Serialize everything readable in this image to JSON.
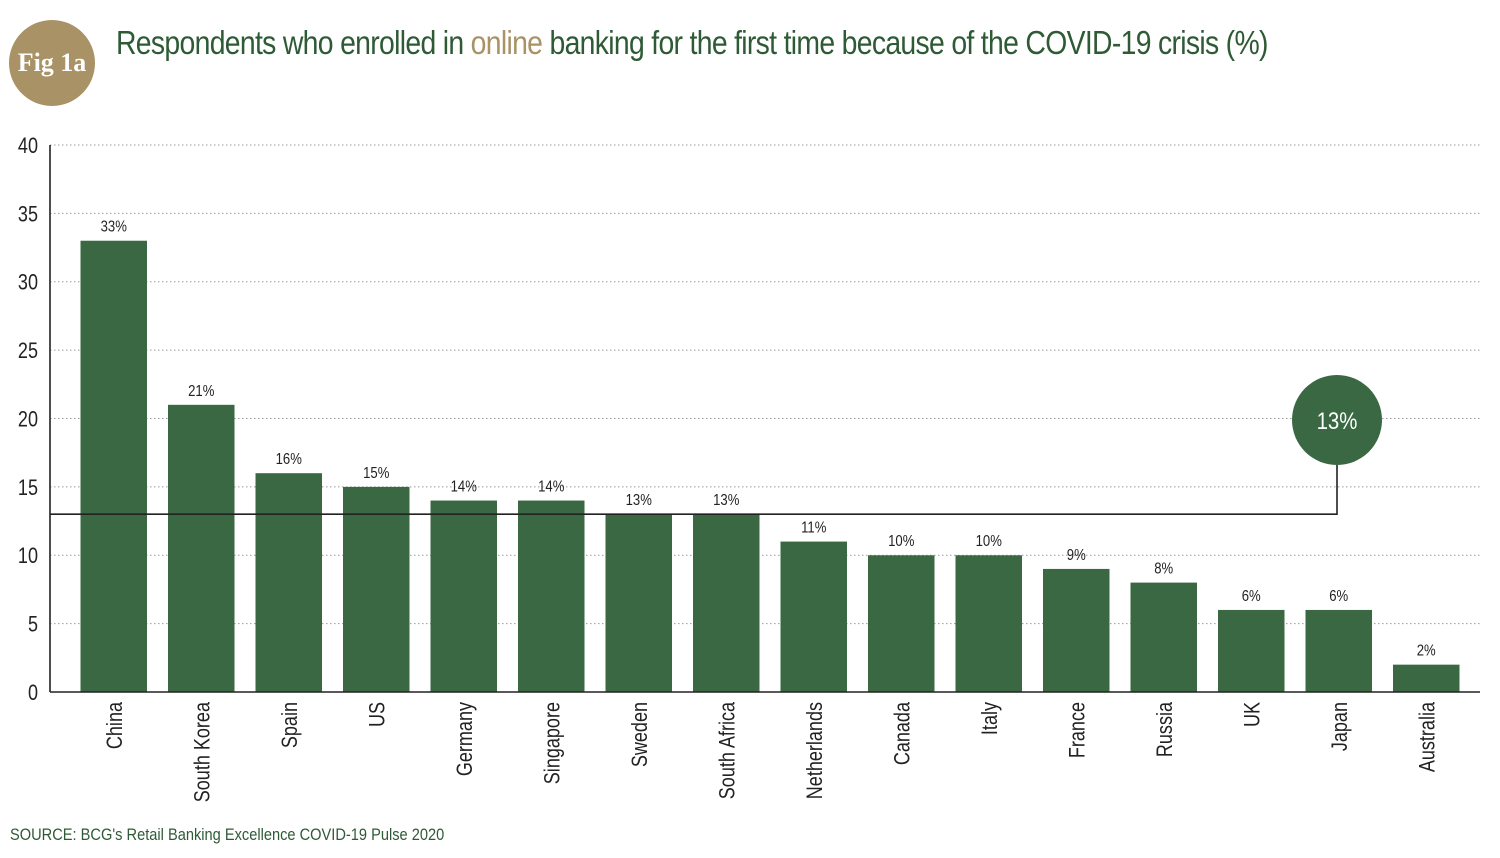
{
  "badge": {
    "label": "Fig 1a"
  },
  "title": {
    "before": "Respondents who enrolled in ",
    "highlight": "online",
    "after": " banking for the first time because of the COVID-19 crisis (%)"
  },
  "source": "SOURCE: BCG's Retail Banking Excellence COVID-19 Pulse 2020",
  "colors": {
    "bar": "#3a6842",
    "accent": "#a89266",
    "title": "#2e5a35",
    "grid": "#9a9a9a"
  },
  "chart_data": {
    "type": "bar",
    "categories": [
      "China",
      "South Korea",
      "Spain",
      "US",
      "Germany",
      "Singapore",
      "Sweden",
      "South Africa",
      "Netherlands",
      "Canada",
      "Italy",
      "France",
      "Russia",
      "UK",
      "Japan",
      "Australia"
    ],
    "values": [
      33,
      21,
      16,
      15,
      14,
      14,
      13,
      13,
      11,
      10,
      10,
      9,
      8,
      6,
      6,
      2
    ],
    "value_labels": [
      "33%",
      "21%",
      "16%",
      "15%",
      "14%",
      "14%",
      "13%",
      "13%",
      "11%",
      "10%",
      "10%",
      "9%",
      "8%",
      "6%",
      "6%",
      "2%"
    ],
    "ylim": [
      0,
      40
    ],
    "yticks": [
      "0",
      "5",
      "10",
      "15",
      "20",
      "25",
      "30",
      "35",
      "40"
    ],
    "grid": "dotted horizontal",
    "average": {
      "value": 13,
      "label": "13%"
    }
  }
}
